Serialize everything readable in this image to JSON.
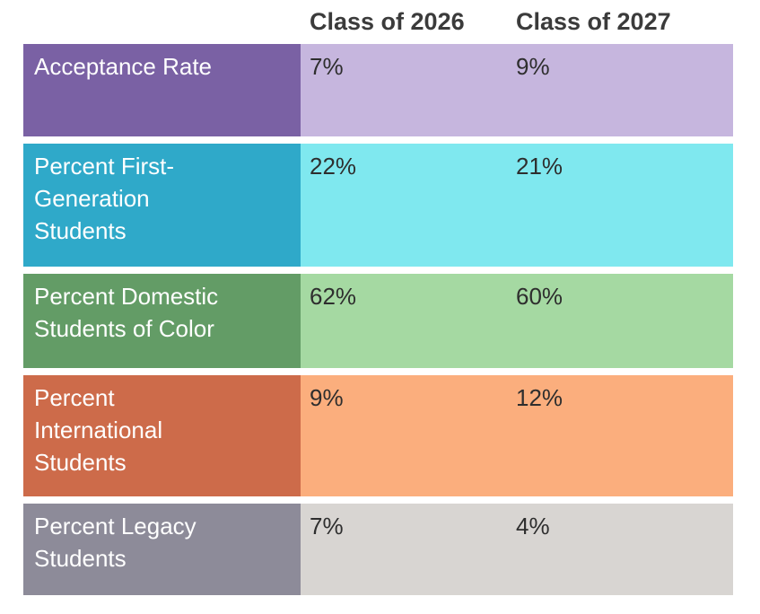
{
  "chart_data": {
    "type": "table",
    "title": "",
    "columns": [
      "Class of 2026",
      "Class of 2027"
    ],
    "rows": [
      {
        "label": "Acceptance Rate",
        "values": [
          "7%",
          "9%"
        ]
      },
      {
        "label": "Percent First-Generation Students",
        "values": [
          "22%",
          "21%"
        ]
      },
      {
        "label": "Percent Domestic Students of Color",
        "values": [
          "62%",
          "60%"
        ]
      },
      {
        "label": "Percent International Students",
        "values": [
          "9%",
          "12%"
        ]
      },
      {
        "label": "Percent Legacy Students",
        "values": [
          "7%",
          "4%"
        ]
      }
    ],
    "row_colors": [
      {
        "label_bg": "#7a61a4",
        "value_bg": "#c6b6de"
      },
      {
        "label_bg": "#2fa9c9",
        "value_bg": "#7fe8ef"
      },
      {
        "label_bg": "#639c66",
        "value_bg": "#a5d9a2"
      },
      {
        "label_bg": "#cd6b4a",
        "value_bg": "#fbae7d"
      },
      {
        "label_bg": "#8d8b99",
        "value_bg": "#d8d5d2"
      }
    ],
    "text_colors": {
      "header": "#3b3b3b",
      "label": "#ffffff",
      "value": "#2e2e2e"
    },
    "layout_hints": {
      "legend_position": "none",
      "grid": "off"
    }
  }
}
